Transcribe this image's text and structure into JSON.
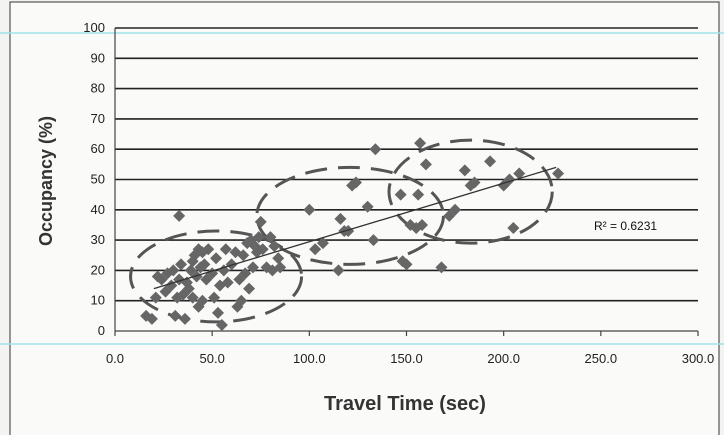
{
  "chart_data": {
    "type": "scatter",
    "title": "",
    "xlabel": "Travel Time (sec)",
    "ylabel": "Occupancy (%)",
    "xlim": [
      0,
      300
    ],
    "ylim": [
      0,
      100
    ],
    "x_ticks": [
      "0.0",
      "50.0",
      "100.0",
      "150.0",
      "200.0",
      "250.0",
      "300.0"
    ],
    "y_ticks": [
      "0",
      "10",
      "20",
      "30",
      "40",
      "50",
      "60",
      "70",
      "80",
      "90",
      "100"
    ],
    "grid": true,
    "series": [
      {
        "marker": "diamond",
        "color": "#666666",
        "points": [
          [
            16,
            5
          ],
          [
            19,
            4
          ],
          [
            21,
            11
          ],
          [
            22,
            18
          ],
          [
            24,
            17
          ],
          [
            26,
            13
          ],
          [
            27,
            19
          ],
          [
            29,
            15
          ],
          [
            30,
            20
          ],
          [
            31,
            5
          ],
          [
            32,
            11
          ],
          [
            33,
            38
          ],
          [
            33,
            17
          ],
          [
            34,
            22
          ],
          [
            35,
            12
          ],
          [
            36,
            4
          ],
          [
            37,
            16
          ],
          [
            38,
            14
          ],
          [
            39,
            20
          ],
          [
            40,
            23
          ],
          [
            40,
            11
          ],
          [
            41,
            25
          ],
          [
            42,
            18
          ],
          [
            43,
            8
          ],
          [
            43,
            27
          ],
          [
            44,
            21
          ],
          [
            45,
            10
          ],
          [
            45,
            26
          ],
          [
            46,
            22
          ],
          [
            47,
            17
          ],
          [
            48,
            27
          ],
          [
            50,
            19
          ],
          [
            51,
            11
          ],
          [
            52,
            24
          ],
          [
            53,
            6
          ],
          [
            54,
            15
          ],
          [
            55,
            2
          ],
          [
            56,
            20
          ],
          [
            57,
            27
          ],
          [
            58,
            16
          ],
          [
            60,
            22
          ],
          [
            62,
            26
          ],
          [
            63,
            8
          ],
          [
            64,
            17
          ],
          [
            65,
            10
          ],
          [
            66,
            25
          ],
          [
            67,
            19
          ],
          [
            68,
            29
          ],
          [
            69,
            14
          ],
          [
            70,
            30
          ],
          [
            71,
            21
          ],
          [
            72,
            28
          ],
          [
            73,
            26
          ],
          [
            74,
            31
          ],
          [
            75,
            36
          ],
          [
            76,
            27
          ],
          [
            78,
            21
          ],
          [
            80,
            31
          ],
          [
            81,
            20
          ],
          [
            82,
            28
          ],
          [
            84,
            24
          ],
          [
            85,
            21
          ],
          [
            100,
            40
          ],
          [
            103,
            27
          ],
          [
            107,
            29
          ],
          [
            115,
            20
          ],
          [
            116,
            37
          ],
          [
            118,
            33
          ],
          [
            120,
            33
          ],
          [
            122,
            48
          ],
          [
            124,
            49
          ],
          [
            130,
            41
          ],
          [
            133,
            30
          ],
          [
            134,
            60
          ],
          [
            147,
            45
          ],
          [
            148,
            23
          ],
          [
            150,
            22
          ],
          [
            152,
            35
          ],
          [
            155,
            34
          ],
          [
            156,
            45
          ],
          [
            157,
            62
          ],
          [
            158,
            35
          ],
          [
            160,
            55
          ],
          [
            168,
            21
          ],
          [
            172,
            38
          ],
          [
            175,
            40
          ],
          [
            180,
            53
          ],
          [
            183,
            48
          ],
          [
            185,
            49
          ],
          [
            193,
            56
          ],
          [
            200,
            48
          ],
          [
            203,
            50
          ],
          [
            205,
            34
          ],
          [
            208,
            52
          ],
          [
            228,
            52
          ]
        ]
      }
    ],
    "trendline": {
      "x": [
        20,
        227
      ],
      "y": [
        14,
        54
      ],
      "r2_label": "R² = 0.6231"
    },
    "clusters": [
      {
        "cx": 52,
        "cy": 18,
        "rx": 44,
        "ry": 15
      },
      {
        "cx": 121,
        "cy": 38,
        "rx": 48,
        "ry": 16
      },
      {
        "cx": 183,
        "cy": 46,
        "rx": 42,
        "ry": 17
      }
    ]
  }
}
